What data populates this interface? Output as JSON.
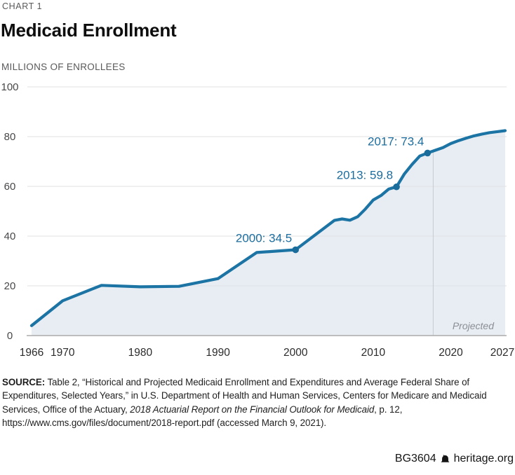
{
  "page": {
    "kicker": "CHART 1",
    "title": "Medicaid Enrollment",
    "unit_label": "MILLIONS OF ENROLLEES"
  },
  "chart_data": {
    "type": "area",
    "title": "Medicaid Enrollment",
    "ylabel": "MILLIONS OF ENROLLEES",
    "ylim": [
      0,
      100
    ],
    "yticks": [
      0,
      20,
      40,
      60,
      80,
      100
    ],
    "xticks": [
      1966,
      1970,
      1980,
      1990,
      2000,
      2010,
      2020,
      2027
    ],
    "grid": "horizontal",
    "series": [
      {
        "name": "Medicaid enrollment (millions of enrollees)",
        "points": [
          [
            1966,
            4.0
          ],
          [
            1970,
            14.0
          ],
          [
            1975,
            20.2
          ],
          [
            1980,
            19.6
          ],
          [
            1985,
            19.8
          ],
          [
            1990,
            22.9
          ],
          [
            1995,
            33.4
          ],
          [
            2000,
            34.5
          ],
          [
            2005,
            46.3
          ],
          [
            2006,
            46.9
          ],
          [
            2007,
            46.4
          ],
          [
            2008,
            47.8
          ],
          [
            2009,
            50.9
          ],
          [
            2010,
            54.5
          ],
          [
            2011,
            56.3
          ],
          [
            2012,
            58.9
          ],
          [
            2013,
            59.8
          ],
          [
            2014,
            64.9
          ],
          [
            2015,
            68.8
          ],
          [
            2016,
            72.2
          ],
          [
            2017,
            73.4
          ],
          [
            2018,
            74.5
          ],
          [
            2019,
            75.6
          ],
          [
            2020,
            77.2
          ],
          [
            2021,
            78.4
          ],
          [
            2022,
            79.4
          ],
          [
            2023,
            80.3
          ],
          [
            2024,
            81.0
          ],
          [
            2025,
            81.6
          ],
          [
            2026,
            82.0
          ],
          [
            2027,
            82.4
          ]
        ]
      }
    ],
    "annotations": [
      {
        "year": 2000,
        "value": 34.5,
        "label": "2000: 34.5"
      },
      {
        "year": 2013,
        "value": 59.8,
        "label": "2013: 59.8"
      },
      {
        "year": 2017,
        "value": 73.4,
        "label": "2017: 73.4"
      }
    ],
    "projection": {
      "start_year": 2018,
      "label": "Projected"
    },
    "colors": {
      "line": "#1c74a4",
      "dot": "#1a6c9b",
      "fill": "#e8edf4",
      "annotation": "#1c6d9e",
      "grid": "#e0e1e2",
      "axis": "#9b9b9b",
      "divider": "#c7ccd2",
      "ytick": "#48484a",
      "xtick": "#2b2b2c",
      "projected_text": "#8b8f94"
    }
  },
  "source": {
    "label": "SOURCE:",
    "before_italic": " Table 2, “Historical and Projected Medicaid Enrollment and Expenditures and Average Federal Share of Expenditures, Selected Years,” in U.S. Department of Health and Human Services, Centers for Medicare and Medicaid Services, Office of the Actuary, ",
    "italic": "2018 Actuarial Report on the Financial Outlook for Medicaid",
    "after_italic": ", p. 12, https://www.cms.gov/files/document/2018-report.pdf (accessed March 9, 2021)."
  },
  "footer": {
    "doc_id": "BG3604",
    "site": "heritage.org",
    "icon": "heritage-bell-icon"
  }
}
